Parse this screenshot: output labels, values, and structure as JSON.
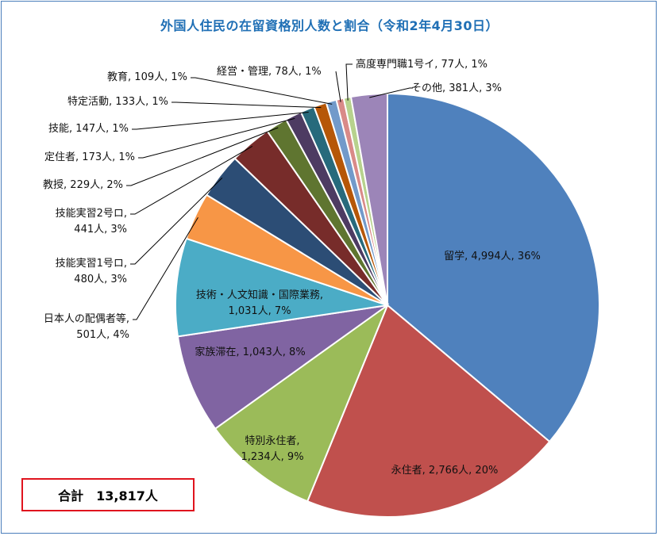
{
  "chart_data": {
    "type": "pie",
    "title": "外国人住民の在留資格別人数と割合（令和2年4月30日）",
    "slices": [
      {
        "name": "留学",
        "value": 4994,
        "percent": 36,
        "label": [
          "留学, 4,994人, 36%"
        ],
        "color": "#4f81bd"
      },
      {
        "name": "永住者",
        "value": 2766,
        "percent": 20,
        "label": [
          "永住者, 2,766人, 20%"
        ],
        "color": "#c0504d"
      },
      {
        "name": "特別永住者",
        "value": 1234,
        "percent": 9,
        "label": [
          "特別永住者,",
          "1,234人, 9%"
        ],
        "color": "#9bbb59"
      },
      {
        "name": "家族滞在",
        "value": 1043,
        "percent": 8,
        "label": [
          "家族滞在, 1,043人, 8%"
        ],
        "color": "#8064a2"
      },
      {
        "name": "技術・人文知識・国際業務",
        "value": 1031,
        "percent": 7,
        "label": [
          "技術・人文知識・国際業務,",
          "1,031人, 7%"
        ],
        "color": "#4bacc6"
      },
      {
        "name": "日本人の配偶者等",
        "value": 501,
        "percent": 4,
        "label": [
          "日本人の配偶者等,",
          "501人, 4%"
        ],
        "color": "#f79646"
      },
      {
        "name": "技能実習1号ロ",
        "value": 480,
        "percent": 3,
        "label": [
          "技能実習1号ロ,",
          "480人, 3%"
        ],
        "color": "#2c4d75"
      },
      {
        "name": "技能実習2号ロ",
        "value": 441,
        "percent": 3,
        "label": [
          "技能実習2号ロ,",
          "441人, 3%"
        ],
        "color": "#772c2a"
      },
      {
        "name": "教授",
        "value": 229,
        "percent": 2,
        "label": [
          "教授, 229人, 2%"
        ],
        "color": "#5f7530"
      },
      {
        "name": "定住者",
        "value": 173,
        "percent": 1,
        "label": [
          "定住者, 173人, 1%"
        ],
        "color": "#4d3b62"
      },
      {
        "name": "技能",
        "value": 147,
        "percent": 1,
        "label": [
          "技能, 147人, 1%"
        ],
        "color": "#276a7c"
      },
      {
        "name": "特定活動",
        "value": 133,
        "percent": 1,
        "label": [
          "特定活動, 133人, 1%"
        ],
        "color": "#b65708"
      },
      {
        "name": "教育",
        "value": 109,
        "percent": 1,
        "label": [
          "教育, 109人, 1%"
        ],
        "color": "#729aca"
      },
      {
        "name": "経営・管理",
        "value": 78,
        "percent": 1,
        "label": [
          "経営・管理, 78人, 1%"
        ],
        "color": "#d98a88"
      },
      {
        "name": "高度専門職1号イ",
        "value": 77,
        "percent": 1,
        "label": [
          "高度専門職1号イ, 77人, 1%"
        ],
        "color": "#b7d28d"
      },
      {
        "name": "その他",
        "value": 381,
        "percent": 3,
        "label": [
          "その他, 381人, 3%"
        ],
        "color": "#9c85b8"
      }
    ],
    "total_label": "合計　13,817人"
  }
}
